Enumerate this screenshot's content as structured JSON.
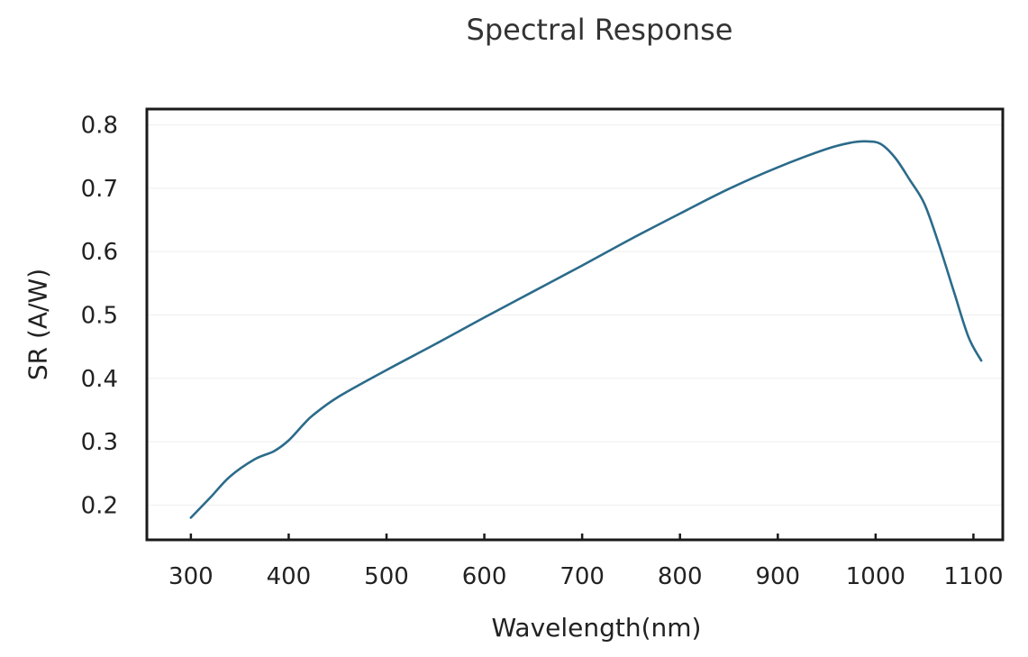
{
  "chart_data": {
    "type": "line",
    "title": "Spectral Response",
    "xlabel": "Wavelength(nm)",
    "ylabel": "SR (A/W)",
    "xlim": [
      255,
      1130
    ],
    "ylim": [
      0.145,
      0.825
    ],
    "xticks": [
      300,
      400,
      500,
      600,
      700,
      800,
      900,
      1000,
      1100
    ],
    "xtick_labels": [
      "300",
      "400",
      "500",
      "600",
      "700",
      "800",
      "900",
      "1000",
      "1100"
    ],
    "yticks": [
      0.2,
      0.3,
      0.4,
      0.5,
      0.6,
      0.7,
      0.8
    ],
    "ytick_labels": [
      "0.2",
      "0.3",
      "0.4",
      "0.5",
      "0.6",
      "0.7",
      "0.8"
    ],
    "grid": true,
    "line_color": "#2b6b8a",
    "series": [
      {
        "x": [
          300,
          320,
          340,
          365,
          385,
          400,
          415,
          425,
          450,
          500,
          550,
          600,
          650,
          700,
          750,
          800,
          850,
          900,
          950,
          975,
          990,
          1005,
          1020,
          1035,
          1050,
          1065,
          1080,
          1095,
          1108
        ],
        "y": [
          0.18,
          0.212,
          0.245,
          0.272,
          0.285,
          0.302,
          0.327,
          0.342,
          0.37,
          0.413,
          0.454,
          0.496,
          0.537,
          0.578,
          0.62,
          0.66,
          0.699,
          0.733,
          0.762,
          0.772,
          0.774,
          0.77,
          0.748,
          0.713,
          0.675,
          0.61,
          0.537,
          0.465,
          0.428
        ]
      }
    ]
  }
}
